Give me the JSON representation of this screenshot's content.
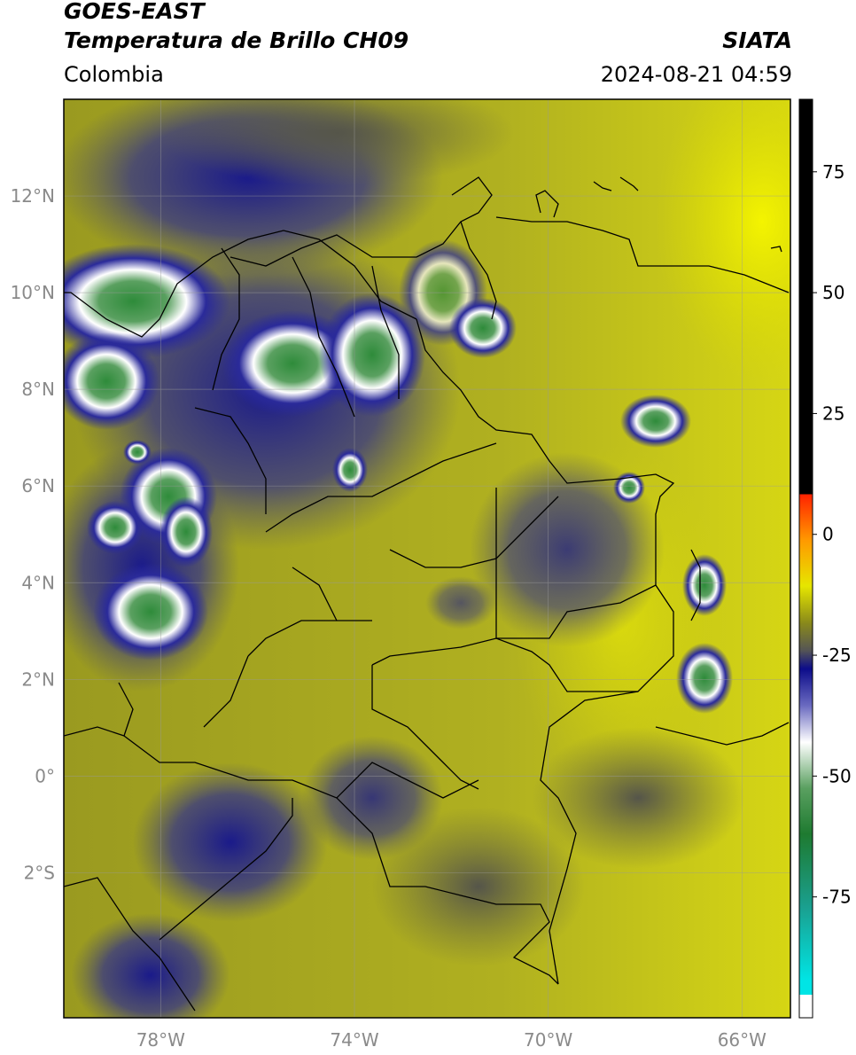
{
  "header": {
    "satellite": "GOES-EAST",
    "product": "Temperatura de Brillo CH09",
    "institution": "SIATA",
    "region": "Colombia",
    "timestamp": "2024-08-21 04:59"
  },
  "map": {
    "lon_range": [
      -80,
      -65
    ],
    "lat_range": [
      -5,
      14
    ],
    "lat_ticks": [
      {
        "value": 12,
        "label": "12°N"
      },
      {
        "value": 10,
        "label": "10°N"
      },
      {
        "value": 8,
        "label": "8°N"
      },
      {
        "value": 6,
        "label": "6°N"
      },
      {
        "value": 4,
        "label": "4°N"
      },
      {
        "value": 2,
        "label": "2°N"
      },
      {
        "value": 0,
        "label": "0°"
      },
      {
        "value": -2,
        "label": "2°S"
      }
    ],
    "lon_ticks": [
      {
        "value": -78,
        "label": "78°W"
      },
      {
        "value": -74,
        "label": "74°W"
      },
      {
        "value": -70,
        "label": "70°W"
      },
      {
        "value": -66,
        "label": "66°W"
      }
    ],
    "grid": true
  },
  "colorbar": {
    "range": [
      -100,
      90
    ],
    "ticks": [
      {
        "value": 75,
        "label": "75"
      },
      {
        "value": 50,
        "label": "50"
      },
      {
        "value": 25,
        "label": "25"
      },
      {
        "value": 0,
        "label": "0"
      },
      {
        "value": -25,
        "label": "-25"
      },
      {
        "value": -50,
        "label": "-50"
      },
      {
        "value": -75,
        "label": "-75"
      }
    ],
    "colors": {
      "black": "#000000",
      "red": "#ff2200",
      "orange": "#ff9900",
      "yellow": "#e6e600",
      "olive": "#9a9a1a",
      "gray": "#5a5a5a",
      "navy": "#0c0c8a",
      "white": "#ffffff",
      "green": "#2e8b3a",
      "teal": "#1aa090",
      "cyan": "#00e5e5"
    }
  }
}
